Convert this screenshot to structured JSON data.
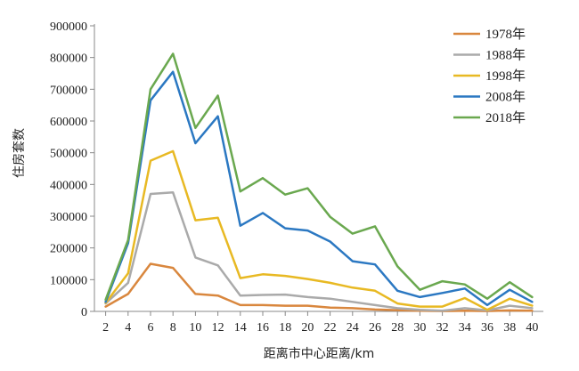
{
  "chart_data": {
    "type": "line",
    "xlabel": "距离市中心距离/km",
    "ylabel": "住房套数",
    "x": [
      2,
      4,
      6,
      8,
      10,
      12,
      14,
      16,
      18,
      20,
      22,
      24,
      26,
      28,
      30,
      32,
      34,
      36,
      38,
      40
    ],
    "xlim": [
      1,
      41
    ],
    "ylim": [
      0,
      900000
    ],
    "yticks": [
      0,
      100000,
      200000,
      300000,
      400000,
      500000,
      600000,
      700000,
      800000,
      900000
    ],
    "ytick_labels": [
      "0",
      "100000",
      "200000",
      "300000",
      "400000",
      "500000",
      "600000",
      "700000",
      "800000",
      "900000"
    ],
    "xtick_labels": [
      "2",
      "4",
      "6",
      "8",
      "10",
      "12",
      "14",
      "16",
      "18",
      "20",
      "22",
      "24",
      "26",
      "28",
      "30",
      "32",
      "34",
      "36",
      "38",
      "40"
    ],
    "grid": false,
    "legend_position": "top-right",
    "series": [
      {
        "name": "1978年",
        "color": "#d9873e",
        "values": [
          15000,
          55000,
          150000,
          137000,
          55000,
          50000,
          20000,
          20000,
          18000,
          18000,
          12000,
          10000,
          6000,
          4000,
          2000,
          1000,
          2000,
          1000,
          3000,
          2000
        ]
      },
      {
        "name": "1988年",
        "color": "#aaaaaa",
        "values": [
          25000,
          90000,
          370000,
          375000,
          170000,
          145000,
          50000,
          52000,
          53000,
          45000,
          40000,
          30000,
          20000,
          10000,
          5000,
          2000,
          10000,
          3000,
          18000,
          10000
        ]
      },
      {
        "name": "1998年",
        "color": "#e8b923",
        "values": [
          27000,
          120000,
          475000,
          505000,
          287000,
          295000,
          105000,
          117000,
          112000,
          102000,
          90000,
          75000,
          65000,
          25000,
          15000,
          15000,
          42000,
          5000,
          40000,
          18000
        ]
      },
      {
        "name": "2008年",
        "color": "#2b78c2",
        "values": [
          30000,
          215000,
          665000,
          755000,
          530000,
          615000,
          270000,
          310000,
          262000,
          255000,
          220000,
          158000,
          148000,
          65000,
          45000,
          58000,
          72000,
          20000,
          68000,
          30000
        ]
      },
      {
        "name": "2018年",
        "color": "#6aa84f",
        "values": [
          37000,
          225000,
          700000,
          812000,
          578000,
          680000,
          378000,
          420000,
          368000,
          388000,
          298000,
          245000,
          268000,
          142000,
          68000,
          95000,
          85000,
          40000,
          92000,
          45000
        ]
      }
    ]
  }
}
